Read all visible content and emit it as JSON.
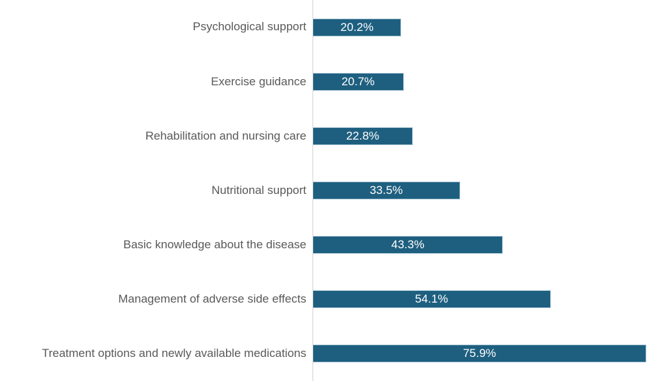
{
  "chart_data": {
    "type": "bar",
    "orientation": "horizontal",
    "title": "",
    "xlabel": "",
    "ylabel": "",
    "xlim": [
      0,
      76
    ],
    "grid": false,
    "legend": null,
    "categories": [
      "Psychological support",
      "Exercise guidance",
      "Rehabilitation and nursing care",
      "Nutritional support",
      "Basic knowledge about the disease",
      "Management of adverse side effects",
      "Treatment options and newly available medications"
    ],
    "values": [
      20.2,
      20.7,
      22.8,
      33.5,
      43.3,
      54.1,
      75.9
    ],
    "value_labels": [
      "20.2%",
      "20.7%",
      "22.8%",
      "33.5%",
      "43.3%",
      "54.1%",
      "75.9%"
    ],
    "colors": {
      "bar_fill": "#1e5f7f",
      "bar_border": "#a9c7d6",
      "category_label": "#595959",
      "value_label": "#ffffff",
      "axis_line": "#d2d2d2",
      "background": "#ffffff"
    }
  }
}
